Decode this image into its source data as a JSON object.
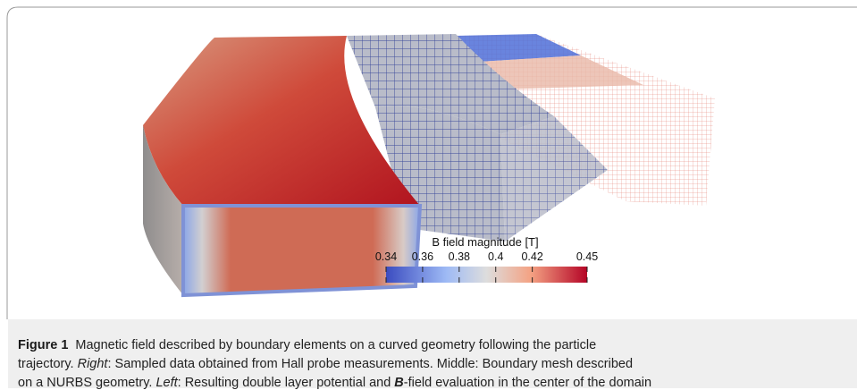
{
  "figure": {
    "colorbar": {
      "title": "B field magnitude [T]",
      "lim": [
        0.34,
        0.45
      ],
      "ticks": [
        0.34,
        0.36,
        0.38,
        0.4,
        0.42,
        0.45
      ]
    },
    "caption": {
      "label": "Figure 1",
      "lines": [
        [
          "Magnetic field described by boundary elements on a curved geometry following the particle"
        ],
        [
          "trajectory. ",
          "Right",
          ": Sampled data obtained from Hall probe measurements. Middle: Boundary mesh described"
        ],
        [
          "on a NURBS geometry. ",
          "Left",
          ": Resulting double layer potential and ",
          "B",
          "-field evaluation in the center of the domain"
        ]
      ]
    }
  }
}
